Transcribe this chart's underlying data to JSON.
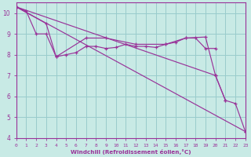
{
  "bg_color": "#c8eae5",
  "line_color": "#993399",
  "grid_color": "#99cccc",
  "xlim": [
    0,
    23
  ],
  "ylim": [
    4,
    10.5
  ],
  "yticks": [
    4,
    5,
    6,
    7,
    8,
    9,
    10
  ],
  "xticks": [
    0,
    1,
    2,
    3,
    4,
    5,
    6,
    7,
    8,
    9,
    10,
    11,
    12,
    13,
    14,
    15,
    16,
    17,
    18,
    19,
    20,
    21,
    22,
    23
  ],
  "xlabel": "Windchill (Refroidissement éolien,°C)",
  "series": [
    {
      "x": [
        0,
        1,
        2,
        3,
        4,
        5,
        6,
        7,
        8,
        9,
        10,
        11,
        12,
        13,
        14,
        15,
        16,
        17,
        18,
        19,
        20
      ],
      "y": [
        10.3,
        10.1,
        9.0,
        9.0,
        7.9,
        8.0,
        8.1,
        8.4,
        8.4,
        8.3,
        8.35,
        8.5,
        8.4,
        8.4,
        8.35,
        8.5,
        8.6,
        8.8,
        8.8,
        8.3,
        8.3
      ]
    },
    {
      "x": [
        0,
        3,
        4,
        7,
        9,
        12,
        15,
        17,
        19,
        20,
        21
      ],
      "y": [
        10.3,
        9.5,
        7.9,
        8.8,
        8.8,
        8.5,
        8.5,
        8.8,
        8.85,
        7.0,
        5.8
      ]
    },
    {
      "x": [
        0,
        20,
        21,
        22,
        23
      ],
      "y": [
        10.3,
        7.0,
        5.8,
        5.65,
        4.3
      ]
    },
    {
      "x": [
        0,
        23
      ],
      "y": [
        10.3,
        4.3
      ]
    }
  ]
}
